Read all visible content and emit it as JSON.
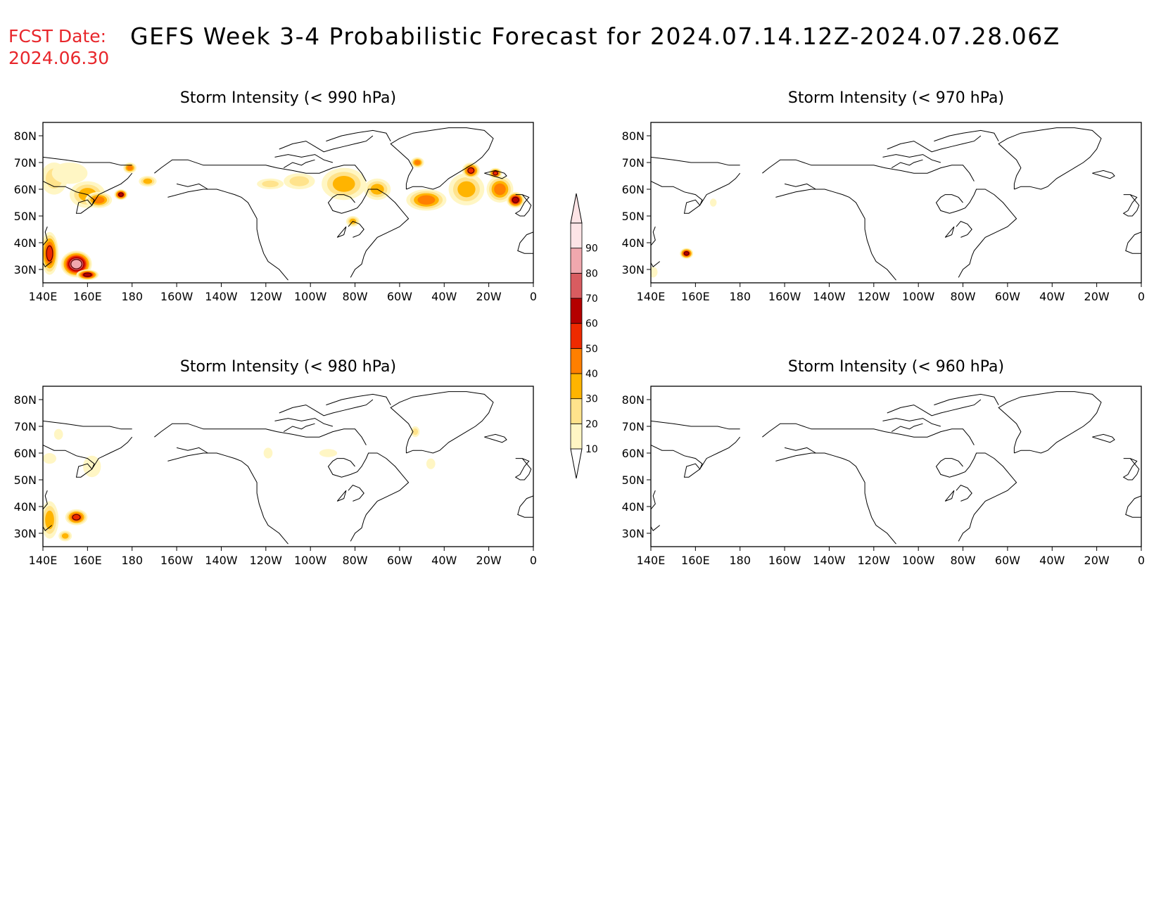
{
  "header": {
    "fcst_label": "FCST Date:",
    "fcst_date": "2024.06.30",
    "title": "GEFS Week 3-4 Probabilistic Forecast for 2024.07.14.12Z-2024.07.28.06Z"
  },
  "colors": {
    "title_red": "#e8262b",
    "coast": "#000000",
    "levels": [
      "#fff6c4",
      "#ffe38c",
      "#ffb400",
      "#ff7f00",
      "#ee2a00",
      "#b40000",
      "#d85c60",
      "#f0a8ae",
      "#fde4e6"
    ]
  },
  "axes": {
    "lon_ticks": [
      "140E",
      "160E",
      "180",
      "160W",
      "140W",
      "120W",
      "100W",
      "80W",
      "60W",
      "40W",
      "20W",
      "0"
    ],
    "lat_ticks": [
      "80N",
      "70N",
      "60N",
      "50N",
      "40N",
      "30N"
    ],
    "lon_values": [
      140,
      160,
      180,
      200,
      220,
      240,
      260,
      280,
      300,
      320,
      340,
      360
    ],
    "lat_values": [
      80,
      70,
      60,
      50,
      40,
      30
    ],
    "lon_range": [
      140,
      360
    ],
    "lat_range": [
      25,
      85
    ]
  },
  "colorbar": {
    "labels": [
      "10",
      "20",
      "30",
      "40",
      "50",
      "60",
      "70",
      "80",
      "90"
    ],
    "values": [
      10,
      20,
      30,
      40,
      50,
      60,
      70,
      80,
      90
    ]
  },
  "panels": [
    {
      "id": "p990",
      "title": "Storm Intensity (< 990 hPa)",
      "blobs": [
        {
          "lon": 145,
          "lat": 64,
          "rlon": 6,
          "rlat": 6,
          "level": 1
        },
        {
          "lon": 152,
          "lat": 66,
          "rlon": 8,
          "rlat": 4,
          "level": 0
        },
        {
          "lon": 160,
          "lat": 58,
          "rlon": 8,
          "rlat": 5,
          "level": 2
        },
        {
          "lon": 165,
          "lat": 56,
          "rlon": 6,
          "rlat": 3,
          "level": 3
        },
        {
          "lon": 175,
          "lat": 58,
          "rlon": 3,
          "rlat": 2,
          "level": 5
        },
        {
          "lon": 179,
          "lat": 68,
          "rlon": 3,
          "rlat": 2,
          "level": 3
        },
        {
          "lon": 187,
          "lat": 63,
          "rlon": 4,
          "rlat": 2,
          "level": 2
        },
        {
          "lon": 143,
          "lat": 36,
          "rlon": 4,
          "rlat": 8,
          "level": 4
        },
        {
          "lon": 155,
          "lat": 32,
          "rlon": 7,
          "rlat": 5,
          "level": 7
        },
        {
          "lon": 160,
          "lat": 28,
          "rlon": 5,
          "rlat": 2,
          "level": 5
        },
        {
          "lon": 242,
          "lat": 62,
          "rlon": 6,
          "rlat": 2,
          "level": 1
        },
        {
          "lon": 255,
          "lat": 63,
          "rlon": 7,
          "rlat": 3,
          "level": 1
        },
        {
          "lon": 275,
          "lat": 62,
          "rlon": 10,
          "rlat": 6,
          "level": 2
        },
        {
          "lon": 290,
          "lat": 60,
          "rlon": 6,
          "rlat": 4,
          "level": 2
        },
        {
          "lon": 279,
          "lat": 48,
          "rlon": 3,
          "rlat": 2,
          "level": 2
        },
        {
          "lon": 312,
          "lat": 56,
          "rlon": 9,
          "rlat": 4,
          "level": 3
        },
        {
          "lon": 330,
          "lat": 60,
          "rlon": 8,
          "rlat": 6,
          "level": 2
        },
        {
          "lon": 332,
          "lat": 67,
          "rlon": 4,
          "rlat": 3,
          "level": 4
        },
        {
          "lon": 345,
          "lat": 60,
          "rlon": 6,
          "rlat": 5,
          "level": 3
        },
        {
          "lon": 352,
          "lat": 56,
          "rlon": 4,
          "rlat": 3,
          "level": 5
        },
        {
          "lon": 343,
          "lat": 66,
          "rlon": 3,
          "rlat": 2,
          "level": 4
        },
        {
          "lon": 308,
          "lat": 70,
          "rlon": 3,
          "rlat": 2,
          "level": 3
        }
      ]
    },
    {
      "id": "p970",
      "title": "Storm Intensity (< 970 hPa)",
      "blobs": [
        {
          "lon": 156,
          "lat": 36,
          "rlon": 3,
          "rlat": 2,
          "level": 5
        },
        {
          "lon": 141,
          "lat": 29,
          "rlon": 2,
          "rlat": 2,
          "level": 0
        },
        {
          "lon": 168,
          "lat": 55,
          "rlon": 1.5,
          "rlat": 1.5,
          "level": 0
        }
      ]
    },
    {
      "id": "p980",
      "title": "Storm Intensity (< 980 hPa)",
      "blobs": [
        {
          "lon": 143,
          "lat": 58,
          "rlon": 3,
          "rlat": 2,
          "level": 0
        },
        {
          "lon": 162,
          "lat": 55,
          "rlon": 4,
          "rlat": 4,
          "level": 0
        },
        {
          "lon": 147,
          "lat": 67,
          "rlon": 2,
          "rlat": 2,
          "level": 0
        },
        {
          "lon": 143,
          "lat": 35,
          "rlon": 4,
          "rlat": 7,
          "level": 2
        },
        {
          "lon": 155,
          "lat": 36,
          "rlon": 5,
          "rlat": 3,
          "level": 4
        },
        {
          "lon": 150,
          "lat": 29,
          "rlon": 3,
          "rlat": 2,
          "level": 2
        },
        {
          "lon": 268,
          "lat": 60,
          "rlon": 4,
          "rlat": 1.5,
          "level": 0
        },
        {
          "lon": 241,
          "lat": 60,
          "rlon": 2,
          "rlat": 2,
          "level": 0
        },
        {
          "lon": 307,
          "lat": 68,
          "rlon": 2,
          "rlat": 2,
          "level": 1
        },
        {
          "lon": 314,
          "lat": 56,
          "rlon": 2,
          "rlat": 2,
          "level": 0
        }
      ]
    },
    {
      "id": "p960",
      "title": "Storm Intensity (< 960 hPa)",
      "blobs": []
    }
  ]
}
